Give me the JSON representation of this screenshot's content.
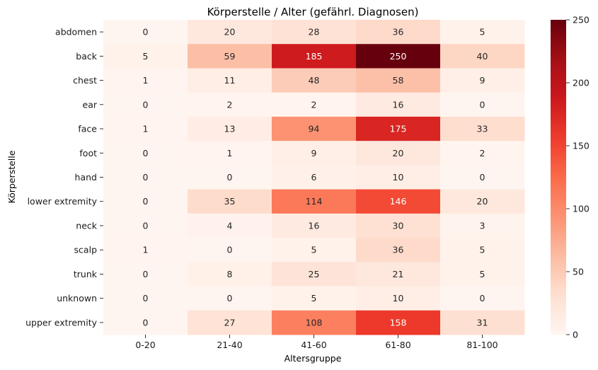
{
  "chart_data": {
    "type": "heatmap",
    "title": "Körperstelle / Alter (gefährl. Diagnosen)",
    "xlabel": "Altersgruppe",
    "ylabel": "Körperstelle",
    "x_categories": [
      "0-20",
      "21-40",
      "41-60",
      "61-80",
      "81-100"
    ],
    "y_categories": [
      "abdomen",
      "back",
      "chest",
      "ear",
      "face",
      "foot",
      "hand",
      "lower extremity",
      "neck",
      "scalp",
      "trunk",
      "unknown",
      "upper extremity"
    ],
    "values": [
      [
        0,
        20,
        28,
        36,
        5
      ],
      [
        5,
        59,
        185,
        250,
        40
      ],
      [
        1,
        11,
        48,
        58,
        9
      ],
      [
        0,
        2,
        2,
        16,
        0
      ],
      [
        1,
        13,
        94,
        175,
        33
      ],
      [
        0,
        1,
        9,
        20,
        2
      ],
      [
        0,
        0,
        6,
        10,
        0
      ],
      [
        0,
        35,
        114,
        146,
        20
      ],
      [
        0,
        4,
        16,
        30,
        3
      ],
      [
        1,
        0,
        5,
        36,
        5
      ],
      [
        0,
        8,
        25,
        21,
        5
      ],
      [
        0,
        0,
        5,
        10,
        0
      ],
      [
        0,
        27,
        108,
        158,
        31
      ]
    ],
    "colormap": "Reds",
    "vmin": 0,
    "vmax": 250,
    "colorbar_ticks": [
      0,
      50,
      100,
      150,
      200,
      250
    ],
    "annotations": true,
    "grid": false
  }
}
